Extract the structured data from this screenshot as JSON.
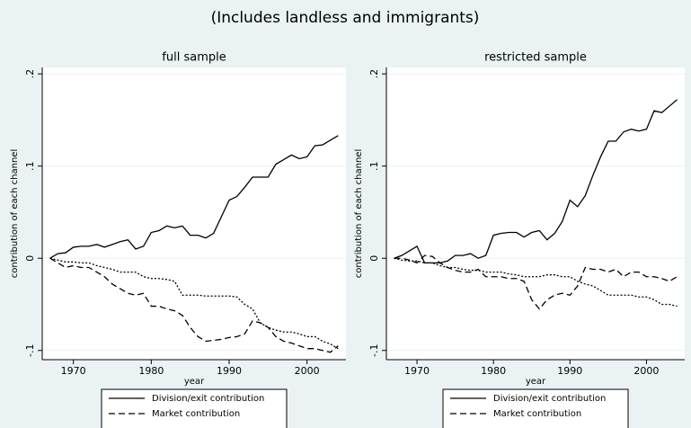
{
  "title": "(Includes landless and immigrants)",
  "chart_data": [
    {
      "type": "line",
      "title": "full sample",
      "x_label": "year",
      "y_label": "contribution of each channel",
      "x": [
        1967,
        1968,
        1969,
        1970,
        1971,
        1972,
        1973,
        1974,
        1975,
        1976,
        1977,
        1978,
        1979,
        1980,
        1981,
        1982,
        1983,
        1984,
        1985,
        1986,
        1987,
        1988,
        1989,
        1990,
        1991,
        1992,
        1993,
        1994,
        1995,
        1996,
        1997,
        1998,
        1999,
        2000,
        2001,
        2002,
        2003,
        2004
      ],
      "xlim": [
        1966,
        2005
      ],
      "xticks": [
        1970,
        1980,
        1990,
        2000
      ],
      "ylim": [
        -0.11,
        0.207
      ],
      "yticks": [
        {
          "value": -0.1,
          "label": "-.1"
        },
        0,
        {
          "value": 0.1,
          "label": ".1"
        },
        {
          "value": 0.2,
          "label": ".2"
        }
      ],
      "grid": true,
      "series": [
        {
          "name": "Division/exit contribution",
          "color": "#000000",
          "style": "solid",
          "values": [
            0,
            0.005,
            0.006,
            0.012,
            0.013,
            0.013,
            0.015,
            0.012,
            0.015,
            0.018,
            0.02,
            0.01,
            0.013,
            0.028,
            0.03,
            0.035,
            0.033,
            0.035,
            0.025,
            0.025,
            0.022,
            0.027,
            0.045,
            0.063,
            0.067,
            0.077,
            0.088,
            0.088,
            0.088,
            0.102,
            0.107,
            0.112,
            0.108,
            0.11,
            0.122,
            0.123,
            0.128,
            0.133
          ]
        },
        {
          "name": "Market contribution",
          "color": "#000000",
          "style": "dashed",
          "values": [
            0,
            -0.005,
            -0.01,
            -0.008,
            -0.01,
            -0.01,
            -0.015,
            -0.02,
            -0.028,
            -0.033,
            -0.038,
            -0.04,
            -0.038,
            -0.052,
            -0.052,
            -0.055,
            -0.057,
            -0.062,
            -0.075,
            -0.085,
            -0.09,
            -0.089,
            -0.088,
            -0.086,
            -0.085,
            -0.082,
            -0.068,
            -0.07,
            -0.075,
            -0.085,
            -0.09,
            -0.092,
            -0.095,
            -0.098,
            -0.098,
            -0.1,
            -0.102,
            -0.095
          ]
        },
        {
          "color": "#000000",
          "style": "dotted",
          "values": [
            0,
            -0.002,
            -0.004,
            -0.004,
            -0.005,
            -0.005,
            -0.008,
            -0.01,
            -0.012,
            -0.015,
            -0.015,
            -0.015,
            -0.02,
            -0.022,
            -0.022,
            -0.023,
            -0.025,
            -0.04,
            -0.04,
            -0.04,
            -0.041,
            -0.041,
            -0.041,
            -0.041,
            -0.042,
            -0.05,
            -0.055,
            -0.07,
            -0.075,
            -0.078,
            -0.08,
            -0.08,
            -0.082,
            -0.085,
            -0.085,
            -0.09,
            -0.093,
            -0.098
          ]
        }
      ]
    },
    {
      "type": "line",
      "title": "restricted sample",
      "x_label": "year",
      "y_label": "contribution of each channel",
      "x": [
        1967,
        1968,
        1969,
        1970,
        1971,
        1972,
        1973,
        1974,
        1975,
        1976,
        1977,
        1978,
        1979,
        1980,
        1981,
        1982,
        1983,
        1984,
        1985,
        1986,
        1987,
        1988,
        1989,
        1990,
        1991,
        1992,
        1993,
        1994,
        1995,
        1996,
        1997,
        1998,
        1999,
        2000,
        2001,
        2002,
        2003,
        2004
      ],
      "xlim": [
        1966,
        2005
      ],
      "xticks": [
        1970,
        1980,
        1990,
        2000
      ],
      "ylim": [
        -0.11,
        0.207
      ],
      "yticks": [
        {
          "value": -0.1,
          "label": "-.1"
        },
        0,
        {
          "value": 0.1,
          "label": ".1"
        },
        {
          "value": 0.2,
          "label": ".2"
        }
      ],
      "grid": true,
      "series": [
        {
          "name": "Division/exit contribution",
          "color": "#000000",
          "style": "solid",
          "values": [
            0,
            0.003,
            0.008,
            0.013,
            -0.005,
            -0.005,
            -0.005,
            -0.003,
            0.003,
            0.003,
            0.005,
            0,
            0.003,
            0.025,
            0.027,
            0.028,
            0.028,
            0.023,
            0.028,
            0.03,
            0.02,
            0.027,
            0.04,
            0.063,
            0.056,
            0.068,
            0.09,
            0.11,
            0.127,
            0.127,
            0.137,
            0.14,
            0.138,
            0.14,
            0.16,
            0.158,
            0.165,
            0.172
          ]
        },
        {
          "name": "Market contribution",
          "color": "#000000",
          "style": "dashed",
          "values": [
            0,
            0,
            -0.002,
            -0.005,
            0.003,
            0.002,
            -0.005,
            -0.01,
            -0.013,
            -0.015,
            -0.015,
            -0.012,
            -0.02,
            -0.02,
            -0.02,
            -0.022,
            -0.022,
            -0.025,
            -0.045,
            -0.055,
            -0.045,
            -0.04,
            -0.038,
            -0.04,
            -0.03,
            -0.01,
            -0.012,
            -0.012,
            -0.015,
            -0.012,
            -0.02,
            -0.015,
            -0.015,
            -0.02,
            -0.02,
            -0.022,
            -0.025,
            -0.02
          ]
        },
        {
          "color": "#000000",
          "style": "dotted",
          "values": [
            0,
            -0.002,
            -0.003,
            -0.003,
            -0.005,
            -0.005,
            -0.008,
            -0.01,
            -0.01,
            -0.012,
            -0.013,
            -0.013,
            -0.015,
            -0.015,
            -0.015,
            -0.017,
            -0.018,
            -0.02,
            -0.02,
            -0.02,
            -0.018,
            -0.018,
            -0.02,
            -0.02,
            -0.025,
            -0.028,
            -0.03,
            -0.035,
            -0.04,
            -0.04,
            -0.04,
            -0.04,
            -0.042,
            -0.042,
            -0.045,
            -0.05,
            -0.05,
            -0.052
          ]
        }
      ]
    }
  ]
}
